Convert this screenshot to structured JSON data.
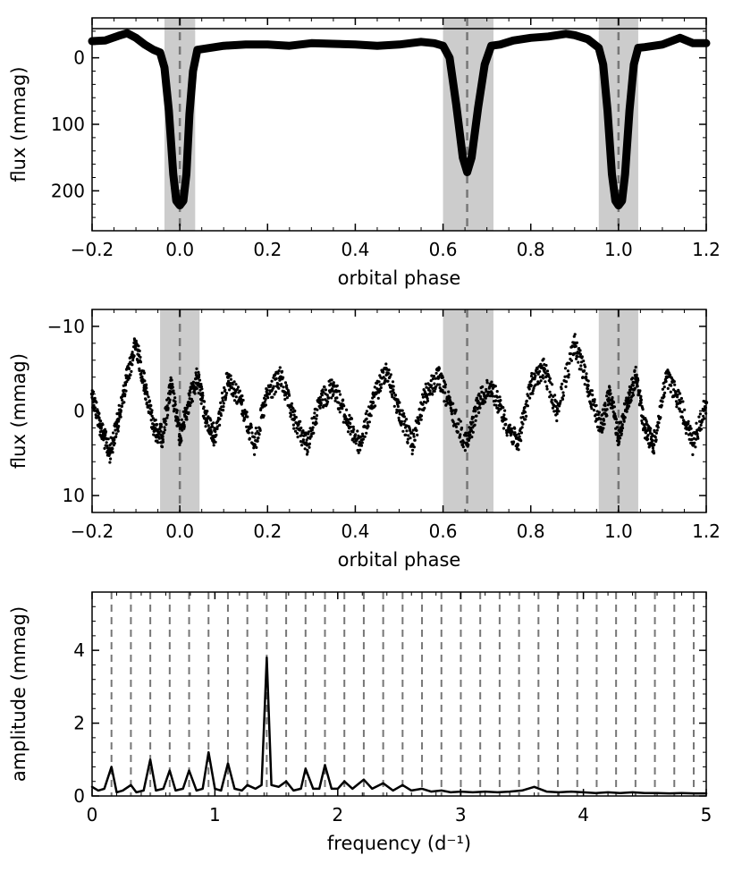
{
  "chart_data": [
    {
      "type": "line",
      "xlabel": "orbital phase",
      "ylabel": "flux (mmag)",
      "xlim": [
        -0.2,
        1.2
      ],
      "ylim": [
        260,
        -60
      ],
      "y_inverted": true,
      "xticks": [
        "−0.2",
        "0.0",
        "0.2",
        "0.4",
        "0.6",
        "0.8",
        "1.0",
        "1.2"
      ],
      "xtick_values": [
        -0.2,
        0.0,
        0.2,
        0.4,
        0.6,
        0.8,
        1.0,
        1.2
      ],
      "yticks": [
        "0",
        "100",
        "200"
      ],
      "ytick_values": [
        0,
        100,
        200
      ],
      "hline": -60,
      "shaded_regions": [
        [
          -0.035,
          0.035
        ],
        [
          0.6,
          0.715
        ],
        [
          0.955,
          1.045
        ]
      ],
      "vlines": [
        0.0,
        0.655,
        1.0
      ],
      "series": [
        {
          "x": [
            -0.2,
            -0.17,
            -0.14,
            -0.12,
            -0.1,
            -0.08,
            -0.06,
            -0.045,
            -0.035,
            -0.025,
            -0.015,
            -0.008,
            0.0,
            0.008,
            0.015,
            0.022,
            0.03,
            0.04,
            0.06,
            0.1,
            0.15,
            0.2,
            0.25,
            0.3,
            0.35,
            0.4,
            0.45,
            0.5,
            0.55,
            0.58,
            0.6,
            0.615,
            0.63,
            0.645,
            0.655,
            0.665,
            0.68,
            0.695,
            0.71,
            0.73,
            0.76,
            0.8,
            0.84,
            0.88,
            0.9,
            0.93,
            0.955,
            0.965,
            0.975,
            0.985,
            0.993,
            1.0,
            1.008,
            1.015,
            1.025,
            1.035,
            1.045,
            1.06,
            1.1,
            1.14,
            1.17,
            1.2
          ],
          "y": [
            -25,
            -26,
            -33,
            -37,
            -30,
            -20,
            -12,
            -8,
            15,
            80,
            175,
            215,
            222,
            215,
            175,
            85,
            20,
            -12,
            -14,
            -18,
            -20,
            -20,
            -18,
            -22,
            -21,
            -20,
            -18,
            -20,
            -24,
            -22,
            -18,
            0,
            70,
            150,
            172,
            150,
            75,
            10,
            -18,
            -20,
            -26,
            -30,
            -32,
            -36,
            -34,
            -28,
            -15,
            10,
            80,
            175,
            215,
            222,
            215,
            175,
            80,
            10,
            -15,
            -16,
            -20,
            -30,
            -22,
            -22
          ]
        }
      ]
    },
    {
      "type": "scatter",
      "xlabel": "orbital phase",
      "ylabel": "flux (mmag)",
      "xlim": [
        -0.2,
        1.2
      ],
      "ylim": [
        12,
        -12
      ],
      "y_inverted": true,
      "xticks": [
        "−0.2",
        "0.0",
        "0.2",
        "0.4",
        "0.6",
        "0.8",
        "1.0",
        "1.2"
      ],
      "xtick_values": [
        -0.2,
        0.0,
        0.2,
        0.4,
        0.6,
        0.8,
        1.0,
        1.2
      ],
      "yticks": [
        "−10",
        "0",
        "10"
      ],
      "ytick_values": [
        -10,
        0,
        10
      ],
      "shaded_regions": [
        [
          -0.045,
          0.045
        ],
        [
          0.6,
          0.715
        ],
        [
          0.955,
          1.045
        ]
      ],
      "vlines": [
        0.0,
        0.655,
        1.0
      ],
      "series": [
        {
          "x": [
            -0.2,
            -0.18,
            -0.16,
            -0.14,
            -0.12,
            -0.1,
            -0.08,
            -0.06,
            -0.04,
            -0.02,
            0.0,
            0.02,
            0.04,
            0.06,
            0.08,
            0.11,
            0.14,
            0.17,
            0.2,
            0.23,
            0.26,
            0.29,
            0.32,
            0.35,
            0.38,
            0.41,
            0.44,
            0.47,
            0.5,
            0.53,
            0.56,
            0.59,
            0.62,
            0.655,
            0.68,
            0.71,
            0.74,
            0.77,
            0.8,
            0.83,
            0.86,
            0.9,
            0.93,
            0.96,
            0.98,
            1.0,
            1.02,
            1.04,
            1.06,
            1.08,
            1.11,
            1.14,
            1.17,
            1.2
          ],
          "y": [
            -2,
            2,
            5,
            1,
            -4,
            -8,
            -3,
            2,
            3,
            -3,
            3,
            -1,
            -4,
            1,
            3,
            -4,
            -1,
            4,
            -2,
            -4,
            1,
            4,
            -1,
            -3,
            1,
            4,
            -1,
            -5,
            0,
            4,
            -2,
            -4,
            0,
            4,
            -1,
            -3,
            1,
            4,
            -3,
            -5,
            0,
            -8,
            -3,
            2,
            -2,
            3,
            -1,
            -4,
            2,
            4,
            -4,
            -1,
            4,
            -1
          ]
        }
      ]
    },
    {
      "type": "line",
      "xlabel": "frequency (d⁻¹)",
      "ylabel": "amplitude (mmag)",
      "xlim": [
        0,
        5
      ],
      "ylim": [
        0,
        5.6
      ],
      "xticks": [
        "0",
        "1",
        "2",
        "3",
        "4",
        "5"
      ],
      "xtick_values": [
        0,
        1,
        2,
        3,
        4,
        5
      ],
      "yticks": [
        "0",
        "2",
        "4"
      ],
      "ytick_values": [
        0,
        2,
        4
      ],
      "vlines": [
        0.158,
        0.316,
        0.474,
        0.632,
        0.79,
        0.948,
        1.106,
        1.264,
        1.422,
        1.58,
        1.738,
        1.896,
        2.054,
        2.212,
        2.37,
        2.528,
        2.686,
        2.844,
        3.002,
        3.16,
        3.318,
        3.476,
        3.634,
        3.792,
        3.95,
        4.108,
        4.266,
        4.424,
        4.582,
        4.74,
        4.898
      ],
      "series": [
        {
          "x": [
            0,
            0.05,
            0.1,
            0.158,
            0.2,
            0.25,
            0.316,
            0.36,
            0.42,
            0.474,
            0.52,
            0.58,
            0.632,
            0.68,
            0.74,
            0.79,
            0.85,
            0.9,
            0.948,
            1.0,
            1.05,
            1.106,
            1.16,
            1.22,
            1.264,
            1.33,
            1.38,
            1.422,
            1.46,
            1.52,
            1.58,
            1.64,
            1.7,
            1.738,
            1.8,
            1.85,
            1.896,
            1.95,
            2.0,
            2.054,
            2.12,
            2.212,
            2.28,
            2.37,
            2.45,
            2.528,
            2.6,
            2.686,
            2.76,
            2.844,
            2.92,
            3.0,
            3.1,
            3.2,
            3.3,
            3.4,
            3.5,
            3.6,
            3.7,
            3.8,
            3.9,
            4.0,
            4.1,
            4.2,
            4.3,
            4.4,
            4.5,
            4.6,
            4.7,
            4.8,
            4.9,
            5.0
          ],
          "y": [
            0.25,
            0.15,
            0.2,
            0.8,
            0.1,
            0.15,
            0.3,
            0.1,
            0.15,
            1.0,
            0.15,
            0.2,
            0.7,
            0.15,
            0.2,
            0.7,
            0.15,
            0.2,
            1.2,
            0.2,
            0.15,
            0.9,
            0.2,
            0.15,
            0.3,
            0.2,
            0.3,
            3.8,
            0.3,
            0.25,
            0.4,
            0.15,
            0.2,
            0.75,
            0.2,
            0.2,
            0.85,
            0.2,
            0.2,
            0.4,
            0.2,
            0.45,
            0.2,
            0.35,
            0.15,
            0.3,
            0.15,
            0.2,
            0.12,
            0.15,
            0.1,
            0.12,
            0.1,
            0.12,
            0.1,
            0.12,
            0.15,
            0.25,
            0.12,
            0.1,
            0.12,
            0.1,
            0.08,
            0.1,
            0.08,
            0.1,
            0.08,
            0.08,
            0.07,
            0.08,
            0.07,
            0.07
          ]
        }
      ]
    }
  ]
}
